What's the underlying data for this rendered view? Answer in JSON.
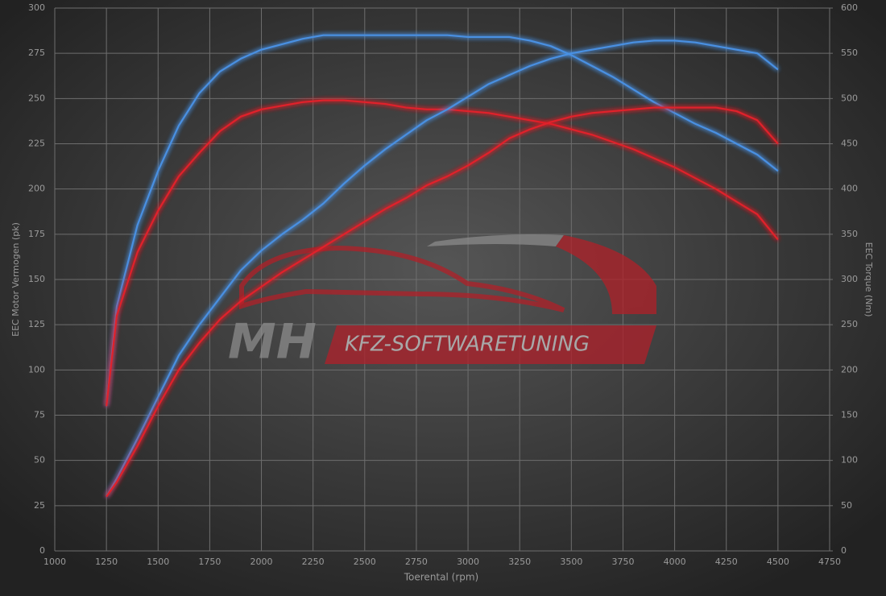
{
  "chart_data": {
    "type": "line",
    "xlabel": "Toerental (rpm)",
    "ylabel": "EEC Motor Vermogen (pk)",
    "y2label": "EEC Torque (Nm)",
    "watermark": {
      "left": "MH",
      "right": "KFZ-SOFTWARETUNING"
    },
    "grid": true,
    "xlim": [
      1000,
      4750
    ],
    "xticks": [
      1000,
      1250,
      1500,
      1750,
      2000,
      2250,
      2500,
      2750,
      3000,
      3250,
      3500,
      3750,
      4000,
      4250,
      4500,
      4750
    ],
    "ylim": [
      0,
      300
    ],
    "yticks": [
      0,
      25,
      50,
      75,
      100,
      125,
      150,
      175,
      200,
      225,
      250,
      275,
      300
    ],
    "y2lim": [
      0,
      600
    ],
    "y2ticks": [
      0,
      50,
      100,
      150,
      200,
      250,
      300,
      350,
      400,
      450,
      500,
      550,
      600
    ],
    "x": [
      1250,
      1300,
      1400,
      1500,
      1600,
      1700,
      1800,
      1900,
      2000,
      2100,
      2200,
      2300,
      2400,
      2500,
      2600,
      2700,
      2800,
      2900,
      3000,
      3100,
      3200,
      3300,
      3400,
      3500,
      3600,
      3700,
      3800,
      3900,
      4000,
      4100,
      4200,
      4300,
      4400,
      4500
    ],
    "series": [
      {
        "color": "#4a90e2",
        "axis": "y2",
        "values": [
          160,
          270,
          360,
          420,
          470,
          506,
          530,
          544,
          554,
          560,
          566,
          570,
          570,
          570,
          570,
          570,
          570,
          570,
          568,
          568,
          568,
          564,
          558,
          548,
          536,
          524,
          510,
          496,
          484,
          472,
          462,
          450,
          438,
          420
        ]
      },
      {
        "color": "#e0202a",
        "axis": "y2",
        "values": [
          160,
          260,
          330,
          376,
          414,
          440,
          464,
          480,
          488,
          492,
          496,
          498,
          498,
          496,
          494,
          490,
          488,
          488,
          486,
          484,
          480,
          476,
          472,
          466,
          460,
          452,
          444,
          434,
          424,
          412,
          400,
          386,
          372,
          344
        ]
      },
      {
        "color": "#4a90e2",
        "values": [
          30,
          40,
          62,
          85,
          108,
          125,
          140,
          155,
          166,
          175,
          183,
          192,
          203,
          213,
          222,
          230,
          238,
          244,
          251,
          258,
          263,
          268,
          272,
          275,
          277,
          279,
          281,
          282,
          282,
          281,
          279,
          277,
          275,
          266
        ]
      },
      {
        "color": "#e0202a",
        "values": [
          30,
          38,
          58,
          80,
          100,
          115,
          128,
          138,
          146,
          154,
          161,
          168,
          175,
          182,
          189,
          195,
          202,
          207,
          213,
          220,
          228,
          233,
          237,
          240,
          242,
          243,
          244,
          245,
          245,
          245,
          245,
          243,
          238,
          225
        ]
      }
    ]
  }
}
